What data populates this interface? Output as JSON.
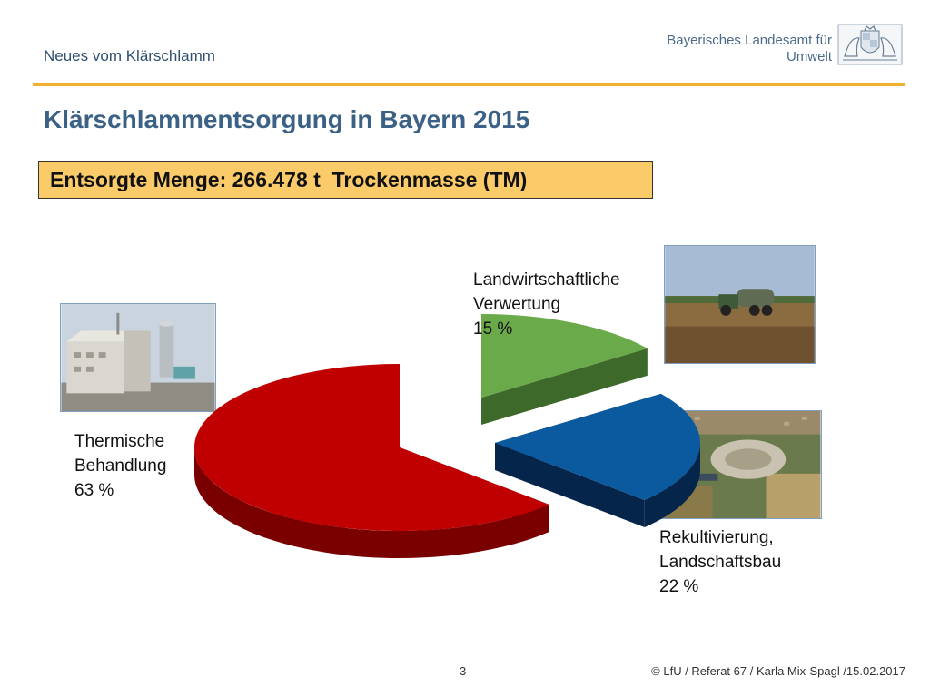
{
  "header": {
    "topic": "Neues vom Klärschlamm",
    "org_line1": "Bayerisches Landesamt für",
    "org_line2": "Umwelt"
  },
  "slide": {
    "title": "Klärschlammentsorgung in Bayern 2015",
    "highlight": "Entsorgte Menge: 266.478 t  Trockenmasse (TM)"
  },
  "labels": {
    "thermisch": [
      "Thermische",
      "Behandlung",
      "63 %"
    ],
    "landwirtschaft": [
      "Landwirtschaftliche",
      "Verwertung",
      "15 %"
    ],
    "rekultivierung": [
      "Rekultivierung,",
      "Landschaftsbau",
      "22 %"
    ]
  },
  "footer": {
    "page": "3",
    "credit": "© LfU / Referat 67 / Karla Mix-Spagl /15.02.2017"
  },
  "colors": {
    "accent_rule": "#f0b030",
    "title": "#3b6286",
    "box_fill": "#fbcb6a"
  },
  "chart_data": {
    "type": "pie",
    "style": "3d-exploded",
    "categories": [
      "Thermische Behandlung",
      "Landwirtschaftliche Verwertung",
      "Rekultivierung, Landschaftsbau"
    ],
    "values": [
      63,
      15,
      22
    ],
    "unit": "%",
    "colors": [
      "#c00000",
      "#6aaa4a",
      "#0b5aa0"
    ],
    "side_colors": [
      "#7a0000",
      "#3d6a2a",
      "#06254a"
    ]
  }
}
